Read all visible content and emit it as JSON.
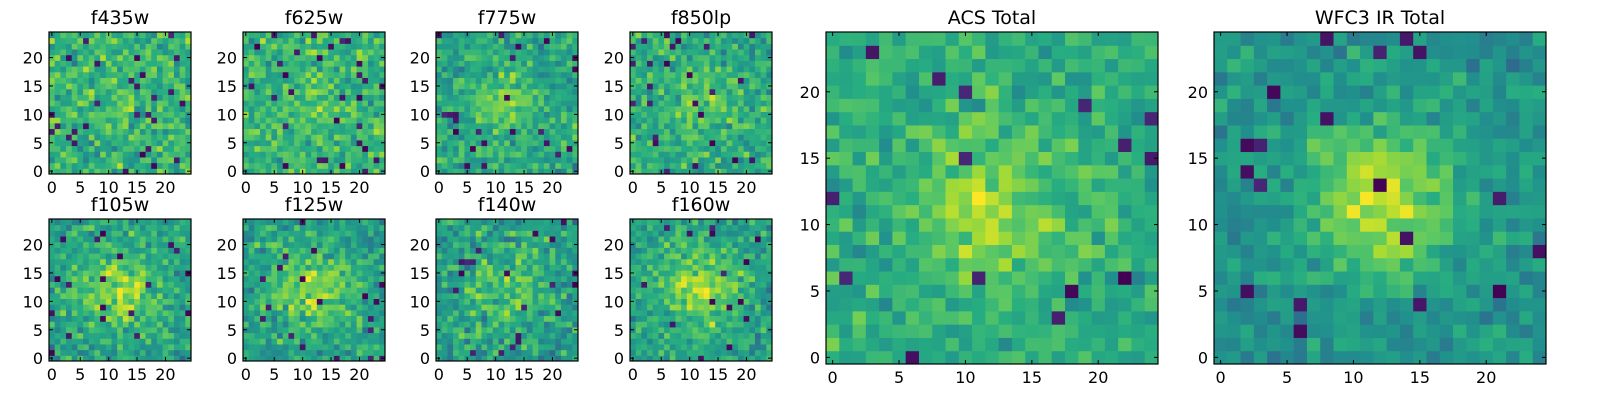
{
  "chart_data": {
    "type": "heatmap",
    "colormap": "viridis",
    "grid": false,
    "panels": [
      {
        "name": "f435w",
        "title": "f435w",
        "xticks": [
          0,
          5,
          10,
          15,
          20
        ],
        "yticks": [
          0,
          5,
          10,
          15,
          20
        ],
        "xlim": [
          0,
          25
        ],
        "ylim": [
          0,
          25
        ],
        "pixels": 25,
        "seed": 11,
        "peak": [
          12,
          12
        ],
        "peak_amp": 0.05,
        "sigma": 4,
        "noise": 0.16,
        "base": 0.66,
        "dark_frac": 0.05
      },
      {
        "name": "f625w",
        "title": "f625w",
        "xticks": [
          0,
          5,
          10,
          15,
          20
        ],
        "yticks": [
          0,
          5,
          10,
          15,
          20
        ],
        "xlim": [
          0,
          25
        ],
        "ylim": [
          0,
          25
        ],
        "pixels": 25,
        "seed": 23,
        "peak": [
          12,
          12
        ],
        "peak_amp": 0.08,
        "sigma": 4,
        "noise": 0.15,
        "base": 0.66,
        "dark_frac": 0.04
      },
      {
        "name": "f775w",
        "title": "f775w",
        "xticks": [
          0,
          5,
          10,
          15,
          20
        ],
        "yticks": [
          0,
          5,
          10,
          15,
          20
        ],
        "xlim": [
          0,
          25
        ],
        "ylim": [
          0,
          25
        ],
        "pixels": 25,
        "seed": 37,
        "peak": [
          12,
          12
        ],
        "peak_amp": 0.18,
        "sigma": 4,
        "noise": 0.15,
        "base": 0.6,
        "dark_frac": 0.03
      },
      {
        "name": "f850lp",
        "title": "f850lp",
        "xticks": [
          0,
          5,
          10,
          15,
          20
        ],
        "yticks": [
          0,
          5,
          10,
          15,
          20
        ],
        "xlim": [
          0,
          25
        ],
        "ylim": [
          0,
          25
        ],
        "pixels": 25,
        "seed": 41,
        "peak": [
          12,
          12
        ],
        "peak_amp": 0.15,
        "sigma": 4,
        "noise": 0.16,
        "base": 0.62,
        "dark_frac": 0.04
      },
      {
        "name": "f105w",
        "title": "f105w",
        "xticks": [
          0,
          5,
          10,
          15,
          20
        ],
        "yticks": [
          0,
          5,
          10,
          15,
          20
        ],
        "xlim": [
          0,
          25
        ],
        "ylim": [
          0,
          25
        ],
        "pixels": 25,
        "seed": 53,
        "peak": [
          12,
          12
        ],
        "peak_amp": 0.25,
        "sigma": 5,
        "noise": 0.15,
        "base": 0.58,
        "dark_frac": 0.03
      },
      {
        "name": "f125w",
        "title": "f125w",
        "xticks": [
          0,
          5,
          10,
          15,
          20
        ],
        "yticks": [
          0,
          5,
          10,
          15,
          20
        ],
        "xlim": [
          0,
          25
        ],
        "ylim": [
          0,
          25
        ],
        "pixels": 25,
        "seed": 67,
        "peak": [
          12,
          12
        ],
        "peak_amp": 0.28,
        "sigma": 5,
        "noise": 0.15,
        "base": 0.56,
        "dark_frac": 0.03
      },
      {
        "name": "f140w",
        "title": "f140w",
        "xticks": [
          0,
          5,
          10,
          15,
          20
        ],
        "yticks": [
          0,
          5,
          10,
          15,
          20
        ],
        "xlim": [
          0,
          25
        ],
        "ylim": [
          0,
          25
        ],
        "pixels": 25,
        "seed": 79,
        "peak": [
          12,
          12
        ],
        "peak_amp": 0.18,
        "sigma": 5,
        "noise": 0.17,
        "base": 0.56,
        "dark_frac": 0.04
      },
      {
        "name": "f160w",
        "title": "f160w",
        "xticks": [
          0,
          5,
          10,
          15,
          20
        ],
        "yticks": [
          0,
          5,
          10,
          15,
          20
        ],
        "xlim": [
          0,
          25
        ],
        "ylim": [
          0,
          25
        ],
        "pixels": 25,
        "seed": 83,
        "peak": [
          12,
          12
        ],
        "peak_amp": 0.3,
        "sigma": 5,
        "noise": 0.15,
        "base": 0.56,
        "dark_frac": 0.03
      },
      {
        "name": "acs-total",
        "title": "ACS Total",
        "xticks": [
          0,
          5,
          10,
          15,
          20
        ],
        "yticks": [
          0,
          5,
          10,
          15,
          20
        ],
        "xlim": [
          0,
          25
        ],
        "ylim": [
          0,
          25
        ],
        "pixels": 25,
        "seed": 97,
        "peak": [
          12,
          11
        ],
        "peak_amp": 0.26,
        "sigma": 4,
        "noise": 0.12,
        "base": 0.62,
        "dark_frac": 0.025
      },
      {
        "name": "wfc3-ir-total",
        "title": "WFC3 IR Total",
        "xticks": [
          0,
          5,
          10,
          15,
          20
        ],
        "yticks": [
          0,
          5,
          10,
          15,
          20
        ],
        "xlim": [
          0,
          25
        ],
        "ylim": [
          0,
          25
        ],
        "pixels": 25,
        "seed": 101,
        "peak": [
          12,
          12
        ],
        "peak_amp": 0.38,
        "sigma": 4,
        "noise": 0.11,
        "base": 0.52,
        "dark_frac": 0.03
      }
    ]
  }
}
